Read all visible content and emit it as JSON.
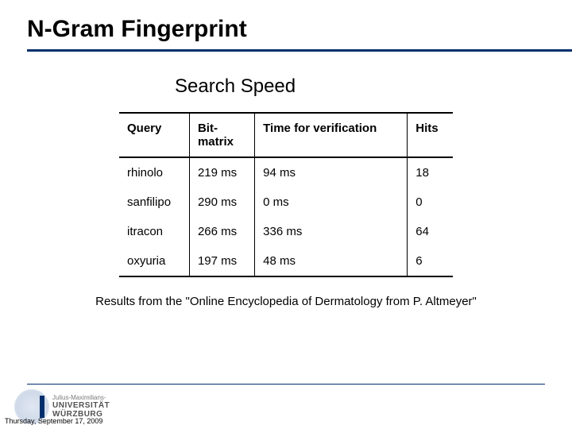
{
  "title": "N-Gram Fingerprint",
  "subtitle": "Search Speed",
  "table": {
    "columns": [
      "Query",
      "Bit-\nmatrix",
      "Time for verification",
      "Hits"
    ],
    "col_widths": [
      "25%",
      "22%",
      "33%",
      "20%"
    ],
    "rows": [
      [
        "rhinolo",
        "219 ms",
        "94 ms",
        "18"
      ],
      [
        "sanfilipo",
        "290 ms",
        "0 ms",
        "0"
      ],
      [
        "itracon",
        "266 ms",
        "336 ms",
        "64"
      ],
      [
        "oxyuria",
        "197 ms",
        "48 ms",
        "6"
      ]
    ],
    "border_color": "#000000",
    "font_size": 15
  },
  "caption": "Results from the \"Online Encyclopedia of Dermatology from P. Altmeyer\"",
  "footer": {
    "logo_small": "Julius-Maximilians-",
    "logo_line1": "UNIVERSITÄT",
    "logo_line2": "WÜRZBURG",
    "date": "Thursday, September 17, 2009",
    "line_color": "#002f6c"
  },
  "colors": {
    "title": "#000000",
    "underline": "#002f6c",
    "background": "#ffffff"
  }
}
